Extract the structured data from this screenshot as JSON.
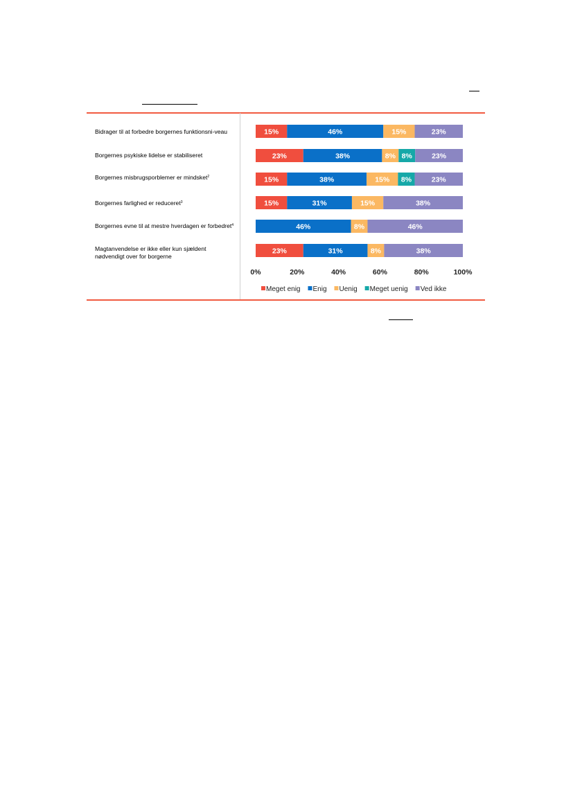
{
  "colors": {
    "accent_rule": "#f15a40",
    "divider": "#d0d0d0"
  },
  "chart_data": {
    "type": "bar",
    "orientation": "horizontal",
    "stacked": true,
    "categories": [
      {
        "text": "Bidrager til at forbedre borgernes funktionsni-veau",
        "footnote": ""
      },
      {
        "text": "Borgernes psykiske lidelse er stabiliseret",
        "footnote": ""
      },
      {
        "text": "Borgernes misbrugsporblemer er mindsket",
        "footnote": "2"
      },
      {
        "text": "Borgernes farlighed er reduceret",
        "footnote": "3"
      },
      {
        "text": "Borgernes evne til at mestre hverdagen er forbedret",
        "footnote": "4"
      },
      {
        "text": "Magtanvendelse er ikke eller kun sjældent nødvendigt over for borgerne",
        "footnote": ""
      }
    ],
    "series": [
      {
        "name": "Meget enig",
        "color": "#f04e3e",
        "label_color": "#ffffff",
        "values": [
          15,
          23,
          15,
          15,
          0,
          23
        ]
      },
      {
        "name": "Enig",
        "color": "#0a70c8",
        "label_color": "#ffffff",
        "values": [
          46,
          38,
          38,
          31,
          46,
          31
        ]
      },
      {
        "name": "Uenig",
        "color": "#fbb862",
        "label_color": "#ffffff",
        "values": [
          15,
          8,
          15,
          15,
          8,
          8
        ]
      },
      {
        "name": "Meget uenig",
        "color": "#16a8a8",
        "label_color": "#ffffff",
        "values": [
          0,
          8,
          8,
          0,
          0,
          0
        ]
      },
      {
        "name": "Ved ikke",
        "color": "#8b86c2",
        "label_color": "#ffffff",
        "values": [
          23,
          23,
          23,
          38,
          46,
          38
        ]
      }
    ],
    "xlim": [
      0,
      100
    ],
    "x_ticks": [
      "0%",
      "20%",
      "40%",
      "60%",
      "80%",
      "100%"
    ],
    "legend_position": "bottom",
    "grid": false
  }
}
